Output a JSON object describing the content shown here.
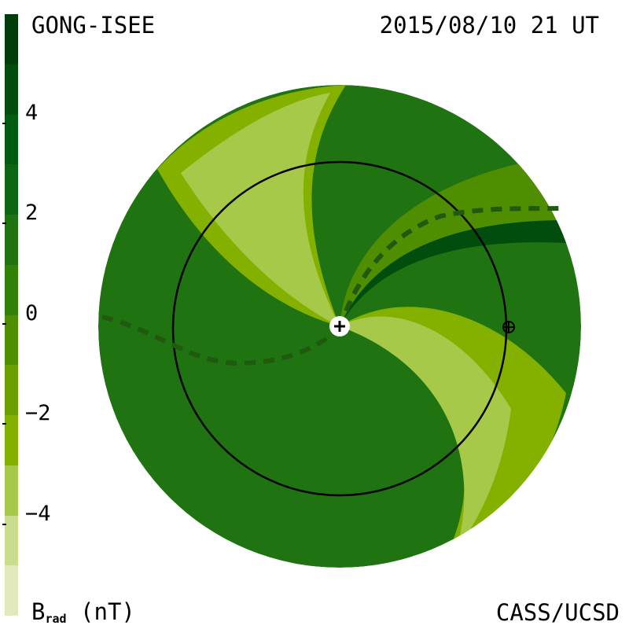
{
  "header": {
    "source": "GONG-ISEE",
    "datetime": "2015/08/10 21 UT"
  },
  "footer": {
    "credit": "CASS/UCSD"
  },
  "colorbar": {
    "label_main": "B",
    "label_sub": "rad",
    "label_unit": " (nT)",
    "ticks": [
      {
        "value": 4,
        "label": "4"
      },
      {
        "value": 2,
        "label": "2"
      },
      {
        "value": 0,
        "label": "0"
      },
      {
        "value": -2,
        "label": "−2"
      },
      {
        "value": -4,
        "label": "−4"
      }
    ],
    "range": [
      -6,
      6
    ],
    "levels": [
      "#dfe9bc",
      "#c9dd8c",
      "#a6c94a",
      "#84b000",
      "#6a9f00",
      "#4f8e00",
      "#318008",
      "#1f7310",
      "#0d6614",
      "#005c10",
      "#004d0e",
      "#003d0b"
    ]
  },
  "symbols": {
    "sun": "sun-center-icon",
    "earth": "earth-icon"
  },
  "colors": {
    "negative_light": "#a6c94a",
    "negative": "#84b000",
    "mid": "#4f8e00",
    "positive": "#1f7310",
    "positive_strong": "#005c10",
    "positive_dark": "#004d0e"
  }
}
